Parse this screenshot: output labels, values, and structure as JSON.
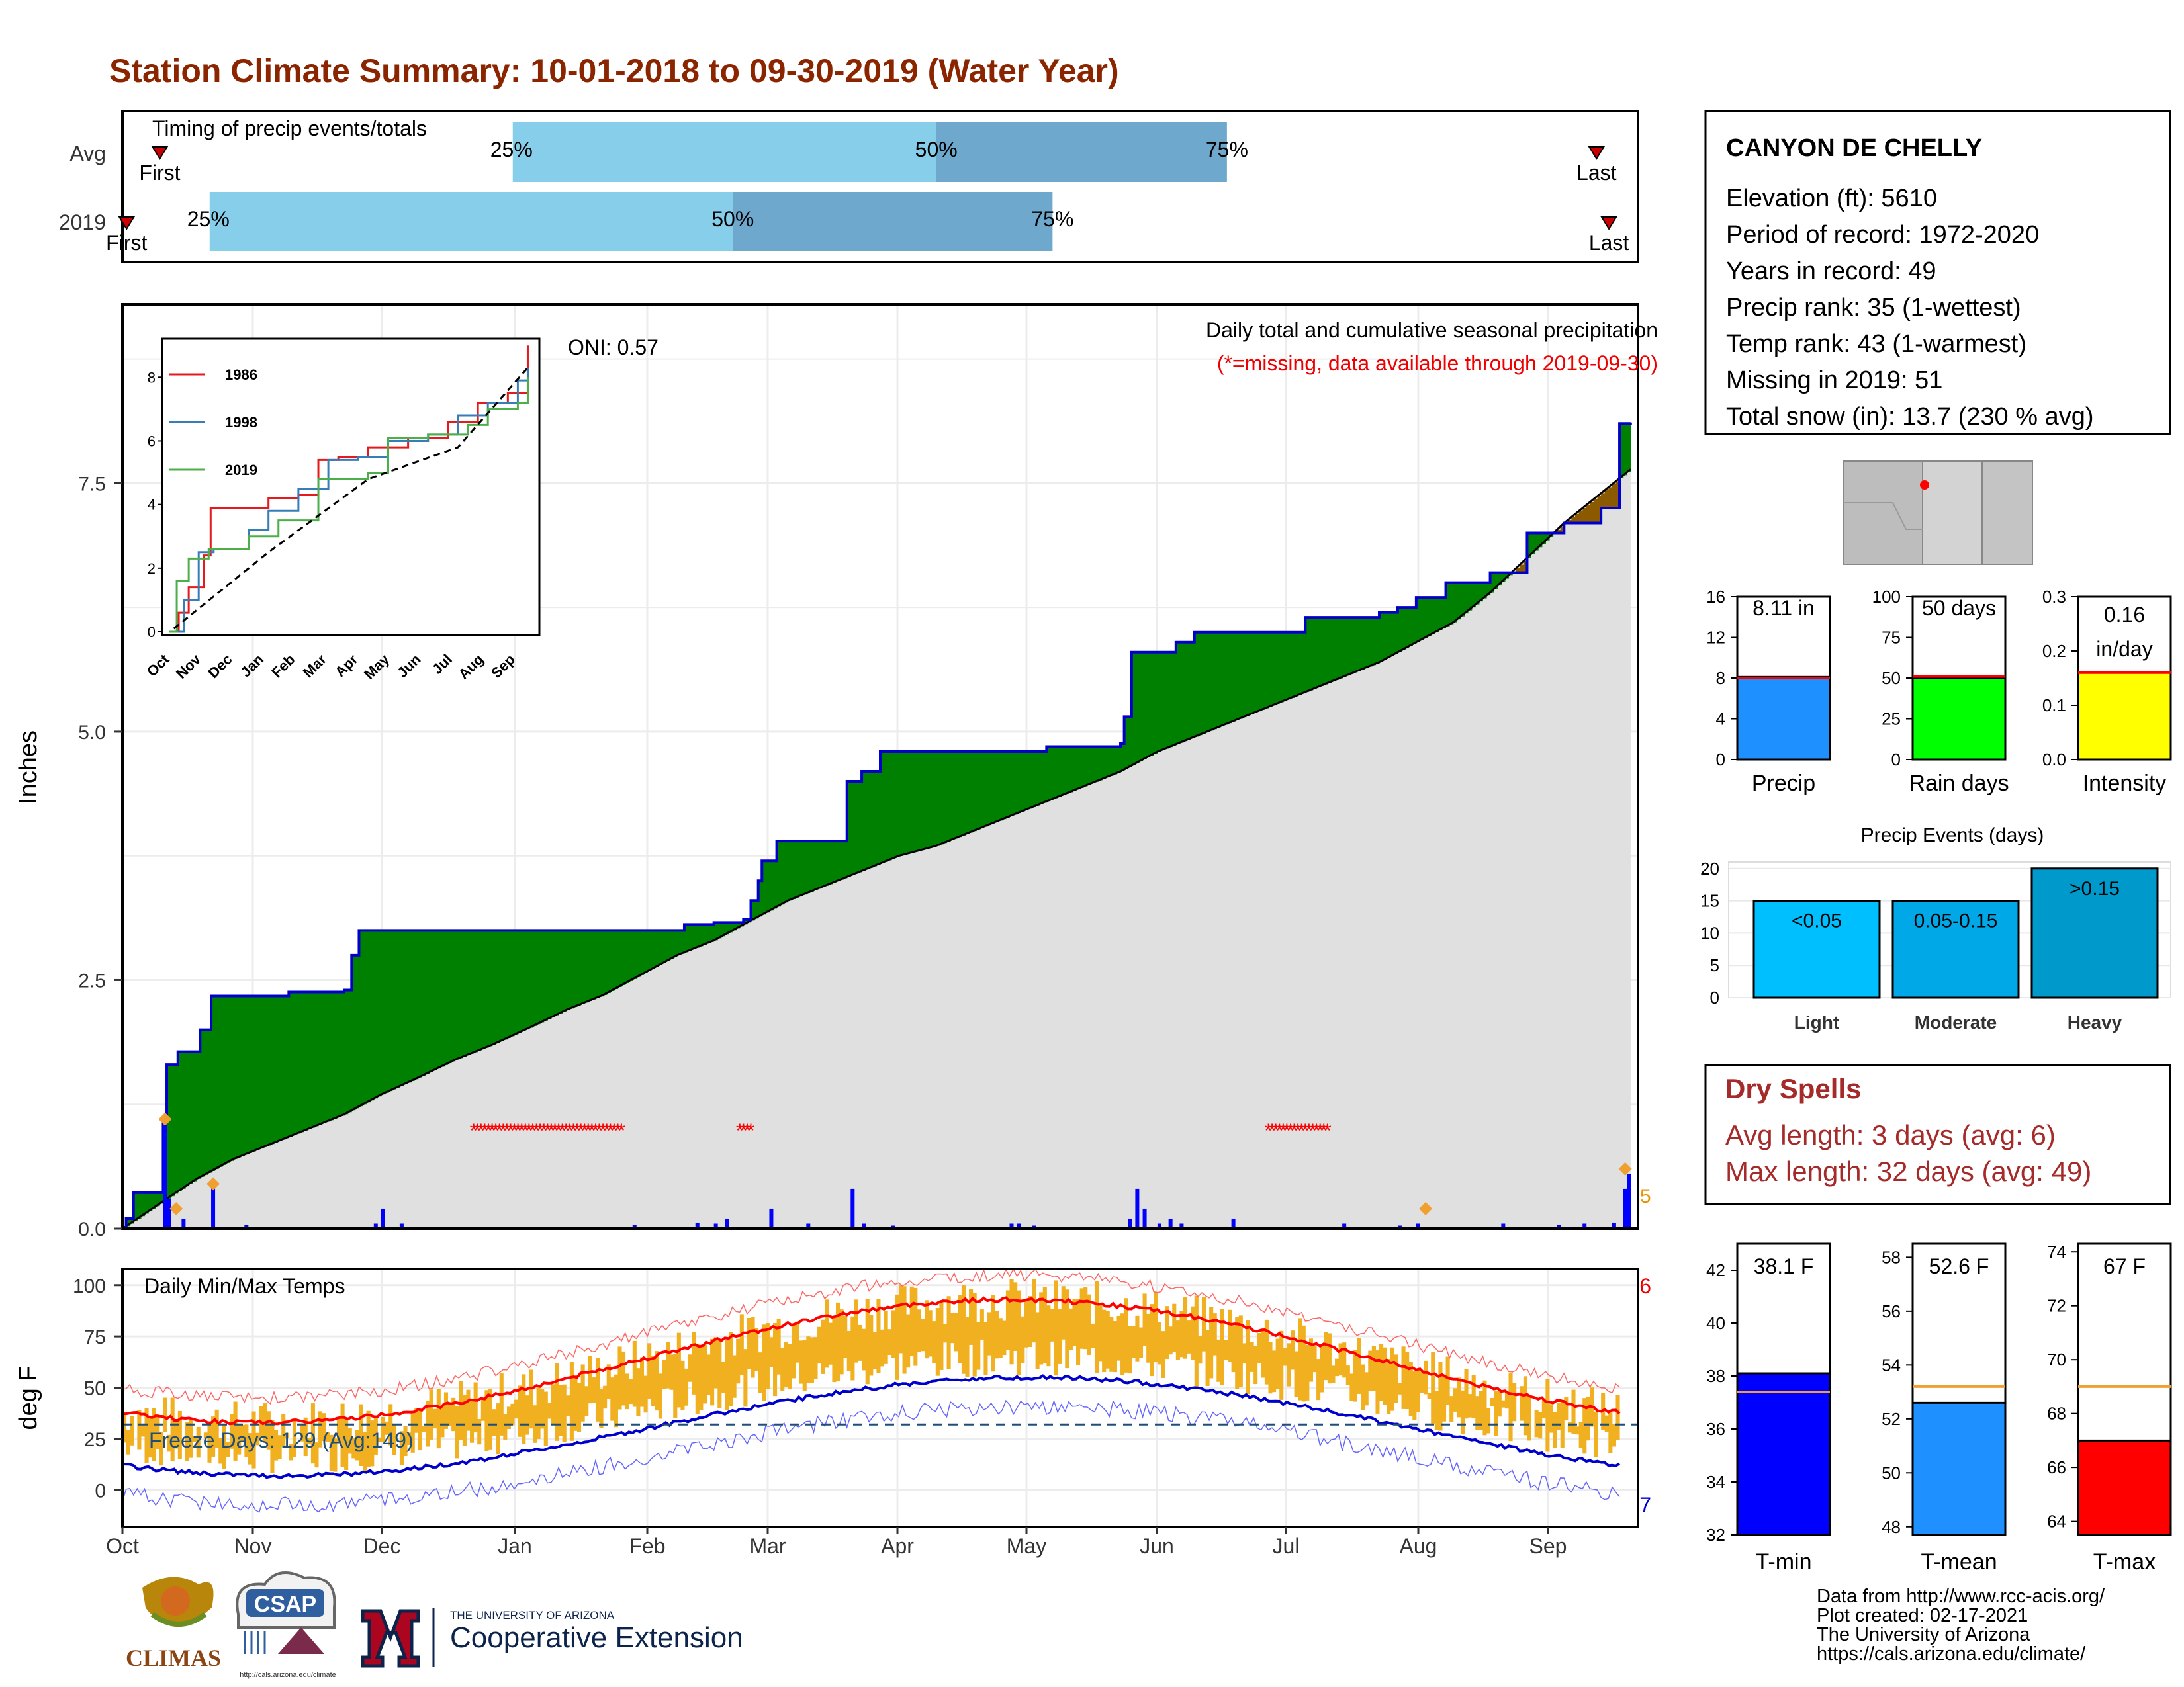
{
  "title": "Station Climate Summary: 10-01-2018 to 09-30-2019 (Water Year)",
  "timing": {
    "label": "Timing of precip events/totals",
    "rows": [
      {
        "name": "Avg",
        "first_label": "First",
        "last_label": "Last",
        "first_day": 9,
        "last_day": 355,
        "q25": 94,
        "q50": 196,
        "q75": 266
      },
      {
        "name": "2019",
        "first_label": "First",
        "last_label": "Last",
        "first_day": 1,
        "last_day": 358,
        "q25": 21,
        "q50": 147,
        "q75": 224
      }
    ],
    "p25_label": "25%",
    "p50_label": "50%",
    "p75_label": "75%",
    "colors": {
      "light": "#87ceeb",
      "dark": "#6fa8cd",
      "marker": "#cc0000"
    }
  },
  "precip": {
    "ylabel": "Inches",
    "subtitle": "Daily total and cumulative seasonal precipitation",
    "missing_note": "(*=missing, data available through 2019-09-30)",
    "oni_label": "ONI: 0.57",
    "yticks": [
      "0.0",
      "2.5",
      "5.0",
      "7.5"
    ],
    "ymax": 9.3,
    "cum_2019": [
      [
        0,
        0
      ],
      [
        1,
        0.1
      ],
      [
        3,
        0.36
      ],
      [
        10,
        0.36
      ],
      [
        11,
        1.1
      ],
      [
        12,
        1.65
      ],
      [
        15,
        1.78
      ],
      [
        20,
        1.78
      ],
      [
        21,
        2.0
      ],
      [
        24,
        2.34
      ],
      [
        40,
        2.34
      ],
      [
        45,
        2.38
      ],
      [
        58,
        2.38
      ],
      [
        60,
        2.4
      ],
      [
        62,
        2.75
      ],
      [
        64,
        3.0
      ],
      [
        92,
        3.0
      ],
      [
        150,
        3.0
      ],
      [
        152,
        3.06
      ],
      [
        160,
        3.08
      ],
      [
        168,
        3.11
      ],
      [
        170,
        3.3
      ],
      [
        172,
        3.5
      ],
      [
        173,
        3.7
      ],
      [
        175,
        3.7
      ],
      [
        177,
        3.9
      ],
      [
        195,
        3.9
      ],
      [
        196,
        4.5
      ],
      [
        200,
        4.6
      ],
      [
        205,
        4.8
      ],
      [
        208,
        4.8
      ],
      [
        240,
        4.8
      ],
      [
        250,
        4.85
      ],
      [
        270,
        4.88
      ],
      [
        271,
        5.15
      ],
      [
        273,
        5.8
      ],
      [
        280,
        5.8
      ],
      [
        285,
        5.9
      ],
      [
        290,
        6.0
      ],
      [
        300,
        6.0
      ],
      [
        320,
        6.15
      ],
      [
        340,
        6.2
      ],
      [
        345,
        6.25
      ],
      [
        350,
        6.35
      ],
      [
        358,
        6.5
      ],
      [
        365,
        6.5
      ],
      [
        370,
        6.6
      ],
      [
        380,
        7.0
      ],
      [
        390,
        7.1
      ],
      [
        400,
        7.25
      ],
      [
        405,
        8.1
      ],
      [
        408,
        8.11
      ]
    ],
    "cum_avg": [
      [
        0,
        0
      ],
      [
        10,
        0.25
      ],
      [
        20,
        0.5
      ],
      [
        30,
        0.7
      ],
      [
        40,
        0.85
      ],
      [
        50,
        1.0
      ],
      [
        60,
        1.15
      ],
      [
        70,
        1.35
      ],
      [
        80,
        1.52
      ],
      [
        90,
        1.7
      ],
      [
        100,
        1.85
      ],
      [
        110,
        2.02
      ],
      [
        120,
        2.2
      ],
      [
        130,
        2.35
      ],
      [
        140,
        2.55
      ],
      [
        150,
        2.75
      ],
      [
        160,
        2.9
      ],
      [
        170,
        3.1
      ],
      [
        180,
        3.3
      ],
      [
        190,
        3.45
      ],
      [
        200,
        3.6
      ],
      [
        210,
        3.75
      ],
      [
        220,
        3.85
      ],
      [
        230,
        4.0
      ],
      [
        240,
        4.15
      ],
      [
        250,
        4.3
      ],
      [
        260,
        4.45
      ],
      [
        270,
        4.6
      ],
      [
        280,
        4.8
      ],
      [
        290,
        4.95
      ],
      [
        300,
        5.1
      ],
      [
        310,
        5.25
      ],
      [
        320,
        5.4
      ],
      [
        330,
        5.55
      ],
      [
        340,
        5.7
      ],
      [
        350,
        5.9
      ],
      [
        360,
        6.1
      ],
      [
        370,
        6.4
      ],
      [
        380,
        6.75
      ],
      [
        390,
        7.1
      ],
      [
        400,
        7.4
      ],
      [
        410,
        7.7
      ],
      [
        420,
        7.9
      ],
      [
        440,
        8.11
      ]
    ],
    "xmax": 408,
    "missing_periods": [
      [
        95,
        135
      ],
      [
        167,
        170
      ],
      [
        310,
        326
      ]
    ],
    "daily_bars": [
      [
        11,
        1.1
      ],
      [
        12,
        0.3
      ],
      [
        16,
        0.1
      ],
      [
        24,
        0.45
      ],
      [
        33,
        0.04
      ],
      [
        68,
        0.05
      ],
      [
        70,
        0.2
      ],
      [
        75,
        0.05
      ],
      [
        138,
        0.04
      ],
      [
        155,
        0.06
      ],
      [
        160,
        0.05
      ],
      [
        163,
        0.1
      ],
      [
        175,
        0.2
      ],
      [
        185,
        0.05
      ],
      [
        197,
        0.4
      ],
      [
        200,
        0.05
      ],
      [
        208,
        0.03
      ],
      [
        240,
        0.05
      ],
      [
        242,
        0.05
      ],
      [
        246,
        0.03
      ],
      [
        263,
        0.02
      ],
      [
        272,
        0.1
      ],
      [
        274,
        0.4
      ],
      [
        276,
        0.2
      ],
      [
        280,
        0.05
      ],
      [
        283,
        0.1
      ],
      [
        286,
        0.05
      ],
      [
        300,
        0.1
      ],
      [
        330,
        0.05
      ],
      [
        333,
        0.02
      ],
      [
        345,
        0.03
      ],
      [
        350,
        0.05
      ],
      [
        355,
        0.02
      ],
      [
        365,
        0.02
      ],
      [
        373,
        0.05
      ],
      [
        384,
        0.02
      ],
      [
        388,
        0.04
      ],
      [
        395,
        0.05
      ],
      [
        403,
        0.06
      ],
      [
        406,
        0.4
      ],
      [
        407,
        0.55
      ]
    ],
    "legend_marker_label": "5",
    "colors": {
      "above": "#008000",
      "below": "#8b5a00",
      "avg_fill": "#e0e0e0",
      "line": "#0000cc",
      "bar": "#0000ff",
      "missing": "#ff0000"
    }
  },
  "inset": {
    "yticks": [
      "0",
      "2",
      "4",
      "6",
      "8"
    ],
    "xticks": [
      "Oct",
      "Nov",
      "Dec",
      "Jan",
      "Feb",
      "Mar",
      "Apr",
      "May",
      "Jun",
      "Jul",
      "Aug",
      "Sep"
    ],
    "series": [
      {
        "name": "1986",
        "color": "#e41a1c"
      },
      {
        "name": "1998",
        "color": "#377eb8"
      },
      {
        "name": "2019",
        "color": "#4daf4a"
      }
    ],
    "avg_color": "#000000"
  },
  "temps": {
    "ylabel": "deg F",
    "title": "Daily Min/Max Temps",
    "freeze_label": "Freeze Days: 129 (Avg:149)",
    "yticks": [
      "0",
      "25",
      "50",
      "75",
      "100"
    ],
    "record_high_count": "6",
    "record_low_count": "7",
    "colors": {
      "bar": "#f0b020",
      "max_avg": "#ff0000",
      "min_avg": "#0000cc",
      "freeze": "#1f4e79"
    }
  },
  "months": [
    "Oct",
    "Nov",
    "Dec",
    "Jan",
    "Feb",
    "Mar",
    "Apr",
    "May",
    "Jun",
    "Jul",
    "Aug",
    "Sep"
  ],
  "station": {
    "name": "CANYON DE CHELLY",
    "lines": [
      "Elevation (ft): 5610",
      "Period of record: 1972-2020",
      "Years in record: 49",
      "Precip rank: 35 (1-wettest)",
      "Temp rank: 43 (1-warmest)",
      "Missing in 2019: 51",
      "Total snow (in): 13.7 (230 % avg)"
    ]
  },
  "summary_bars": [
    {
      "name": "Precip",
      "label": "8.11 in",
      "value": 8.11,
      "avg": 8.0,
      "ymax": 16,
      "yticks": [
        "0",
        "4",
        "8",
        "12",
        "16"
      ],
      "color": "#1e90ff"
    },
    {
      "name": "Rain days",
      "label": "50 days",
      "value": 50,
      "avg": 51,
      "ymax": 100,
      "yticks": [
        "0",
        "25",
        "50",
        "75",
        "100"
      ],
      "color": "#00ff00"
    },
    {
      "name": "Intensity",
      "label": "0.16 in/day",
      "value": 0.16,
      "avg": 0.16,
      "ymax": 0.3,
      "yticks": [
        "0.0",
        "0.1",
        "0.2",
        "0.3"
      ],
      "color": "#ffff00"
    }
  ],
  "precip_events": {
    "title": "Precip Events (days)",
    "yticks": [
      "0",
      "5",
      "10",
      "15",
      "20"
    ],
    "ymax": 21,
    "bars": [
      {
        "name": "Light",
        "label": "<0.05",
        "value": 15,
        "color": "#00bfff"
      },
      {
        "name": "Moderate",
        "label": "0.05-0.15",
        "value": 15,
        "color": "#00a8e8"
      },
      {
        "name": "Heavy",
        "label": ">0.15",
        "value": 20,
        "color": "#0099cc"
      }
    ]
  },
  "dry_spells": {
    "title": "Dry Spells",
    "avg_line": "Avg length: 3 days (avg: 6)",
    "max_line": "Max length: 32 days (avg: 49)"
  },
  "temp_bars": [
    {
      "name": "T-min",
      "label": "38.1 F",
      "value": 38.1,
      "avg": 37.4,
      "ymin": 32,
      "ymax": 43,
      "yticks": [
        "32",
        "34",
        "36",
        "38",
        "40",
        "42"
      ],
      "color": "#0000ff"
    },
    {
      "name": "T-mean",
      "label": "52.6 F",
      "value": 52.6,
      "avg": 53.2,
      "ymin": 47.7,
      "ymax": 58.5,
      "yticks": [
        "48",
        "50",
        "52",
        "54",
        "56",
        "58"
      ],
      "color": "#1e90ff"
    },
    {
      "name": "T-max",
      "label": "67 F",
      "value": 67,
      "avg": 69,
      "ymin": 63.5,
      "ymax": 74.3,
      "yticks": [
        "64",
        "66",
        "68",
        "70",
        "72",
        "74"
      ],
      "color": "#ff0000"
    }
  ],
  "footer": {
    "lines": [
      "Data from http://www.rcc-acis.org/",
      "Plot created: 02-17-2021",
      "The University of Arizona",
      "https://cals.arizona.edu/climate/"
    ],
    "climas": "CLIMAS",
    "csap": "CSAP",
    "csap_url": "http://cals.arizona.edu/climate",
    "ua_top": "THE UNIVERSITY OF ARIZONA",
    "ua_bottom": "Cooperative Extension"
  }
}
